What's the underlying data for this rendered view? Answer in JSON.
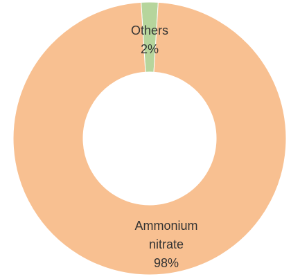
{
  "chart_data": {
    "type": "donut",
    "categories": [
      "Others",
      "Ammonium nitrate"
    ],
    "values": [
      2,
      98
    ],
    "value_labels": [
      "2%",
      "98%"
    ],
    "colors": [
      "#b6d59c",
      "#f8c091"
    ]
  }
}
